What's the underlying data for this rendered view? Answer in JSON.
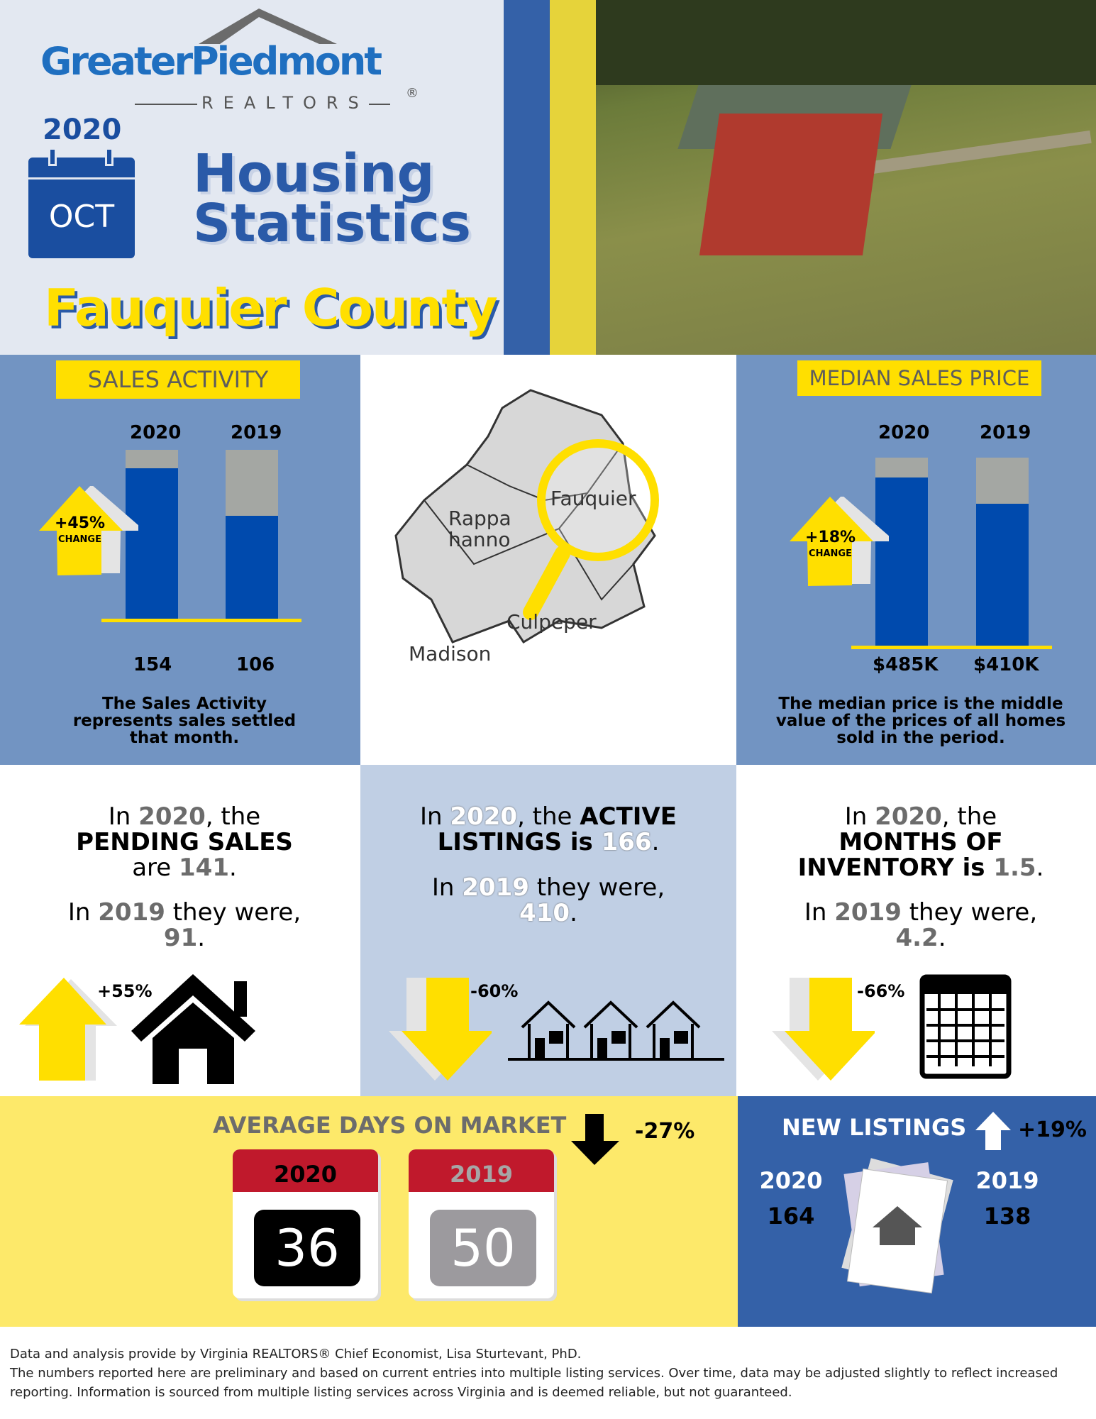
{
  "header": {
    "brand_name": "GreaterPiedmont",
    "brand_sub": "REALTORS",
    "registered": "®",
    "year": "2020",
    "month": "OCT",
    "title_line1": "Housing",
    "title_line2": "Statistics",
    "county": "Fauquier County"
  },
  "colors": {
    "yellow": "#ffdf00",
    "blue": "#004aad",
    "panel_blue": "#7294c2",
    "light_blue": "#c0cfe4",
    "dark_blue": "#3461a8",
    "pale_yellow": "#fde96a",
    "red": "#c0192c"
  },
  "sales_activity": {
    "title": "SALES ACTIVITY",
    "change": "+45%",
    "change_label": "CHANGE",
    "years": [
      "2020",
      "2019"
    ],
    "values": [
      "154",
      "106"
    ],
    "description": "The Sales Activity represents sales settled that month."
  },
  "map": {
    "labels": [
      "Fauquier",
      "Rappahannock",
      "Culpeper",
      "Madison"
    ]
  },
  "median_price": {
    "title": "MEDIAN SALES PRICE",
    "change": "+18%",
    "change_label": "CHANGE",
    "years": [
      "2020",
      "2019"
    ],
    "values": [
      "$485K",
      "$410K"
    ],
    "description": "The median price is the middle value of the prices of all homes sold in the period."
  },
  "chart_data": [
    {
      "type": "bar",
      "title": "SALES ACTIVITY",
      "categories": [
        "2020",
        "2019"
      ],
      "values": [
        154,
        106
      ]
    },
    {
      "type": "bar",
      "title": "MEDIAN SALES PRICE",
      "categories": [
        "2020",
        "2019"
      ],
      "values": [
        485,
        410
      ]
    }
  ],
  "pending": {
    "p1": "In ",
    "y1": "2020",
    "p2": ", the",
    "k1": "PENDING SALES",
    "p3": "are ",
    "v1": "141",
    "p4": ".",
    "p5": "In ",
    "y2": "2019",
    "p6": " they were,",
    "v2": "91",
    "p7": ".",
    "change": "+55%"
  },
  "active": {
    "p1": "In ",
    "y1": "2020",
    "p2": ", the ",
    "k1": "ACTIVE",
    "k2": "LISTINGS is ",
    "v1": "166",
    "p4": ".",
    "p5": "In ",
    "y2": "2019",
    "p6": " they were,",
    "v2": "410",
    "p7": ".",
    "change": "-60%"
  },
  "inventory": {
    "p1": "In ",
    "y1": "2020",
    "p2": ", the",
    "k1": "MONTHS OF",
    "k2": "INVENTORY is ",
    "v1": "1.5",
    "p4": ".",
    "p5": "In ",
    "y2": "2019",
    "p6": " they were,",
    "v2": "4.2",
    "p7": ".",
    "change": "-66%"
  },
  "days_on_market": {
    "title": "AVERAGE DAYS ON MARKET",
    "change": "-27%",
    "year1": "2020",
    "value1": "36",
    "year2": "2019",
    "value2": "50"
  },
  "new_listings": {
    "title": "NEW LISTINGS",
    "change": "+19%",
    "year1": "2020",
    "value1": "164",
    "year2": "2019",
    "value2": "138"
  },
  "footer": {
    "line1": "Data and analysis provide by Virginia REALTORS® Chief Economist, Lisa Sturtevant, PhD.",
    "line2": "The numbers reported here are preliminary and based on current entries into multiple listing services. Over time, data may be adjusted slightly to reflect increased reporting. Information is sourced from multiple listing services across Virginia and is deemed reliable, but not guaranteed."
  }
}
